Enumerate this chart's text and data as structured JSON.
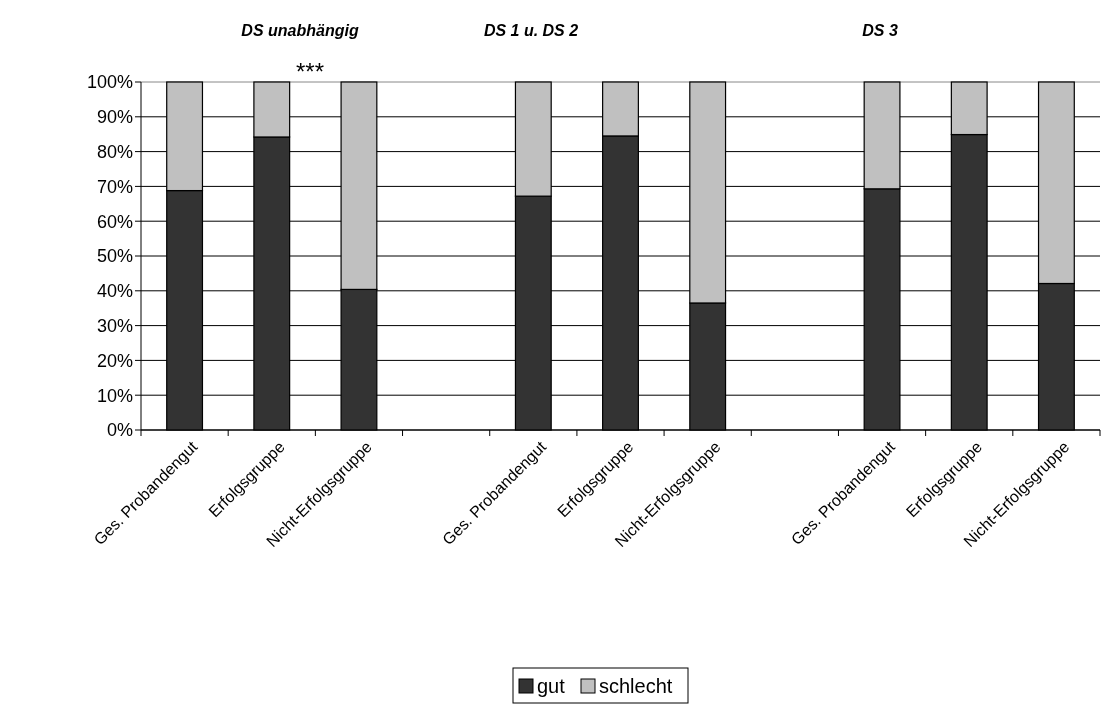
{
  "chart_data": {
    "type": "bar",
    "stacked": true,
    "categories": [
      "Ges. Probandengut",
      "Erfolgsgruppe",
      "Nicht-Erfolgsgruppe",
      null,
      "Ges. Probandengut",
      "Erfolgsgruppe",
      "Nicht-Erfolgsgruppe",
      null,
      "Ges. Probandengut",
      "Erfolgsgruppe",
      "Nicht-Erfolgsgruppe"
    ],
    "series": [
      {
        "name": "gut",
        "color": "#333333",
        "values": [
          68.8,
          84.2,
          40.4,
          null,
          67.2,
          84.5,
          36.5,
          null,
          69.3,
          84.9,
          42.1
        ]
      },
      {
        "name": "schlecht",
        "color": "#c0c0c0",
        "values": [
          31.2,
          15.8,
          59.6,
          null,
          32.8,
          15.5,
          63.5,
          null,
          30.7,
          15.1,
          57.9
        ]
      }
    ],
    "ylim": [
      0,
      100
    ],
    "yticks": [
      {
        "value": 0,
        "label": "0%"
      },
      {
        "value": 10,
        "label": "10%"
      },
      {
        "value": 20,
        "label": "20%"
      },
      {
        "value": 30,
        "label": "30%"
      },
      {
        "value": 40,
        "label": "40%"
      },
      {
        "value": 50,
        "label": "50%"
      },
      {
        "value": 60,
        "label": "60%"
      },
      {
        "value": 70,
        "label": "70%"
      },
      {
        "value": 80,
        "label": "80%"
      },
      {
        "value": 90,
        "label": "90%"
      },
      {
        "value": 100,
        "label": "100%"
      }
    ],
    "grid": "y",
    "legend": "bottom",
    "annotations": [
      "DS unabhängig",
      "DS 1 u. DS 2",
      "DS 3",
      "***"
    ]
  }
}
